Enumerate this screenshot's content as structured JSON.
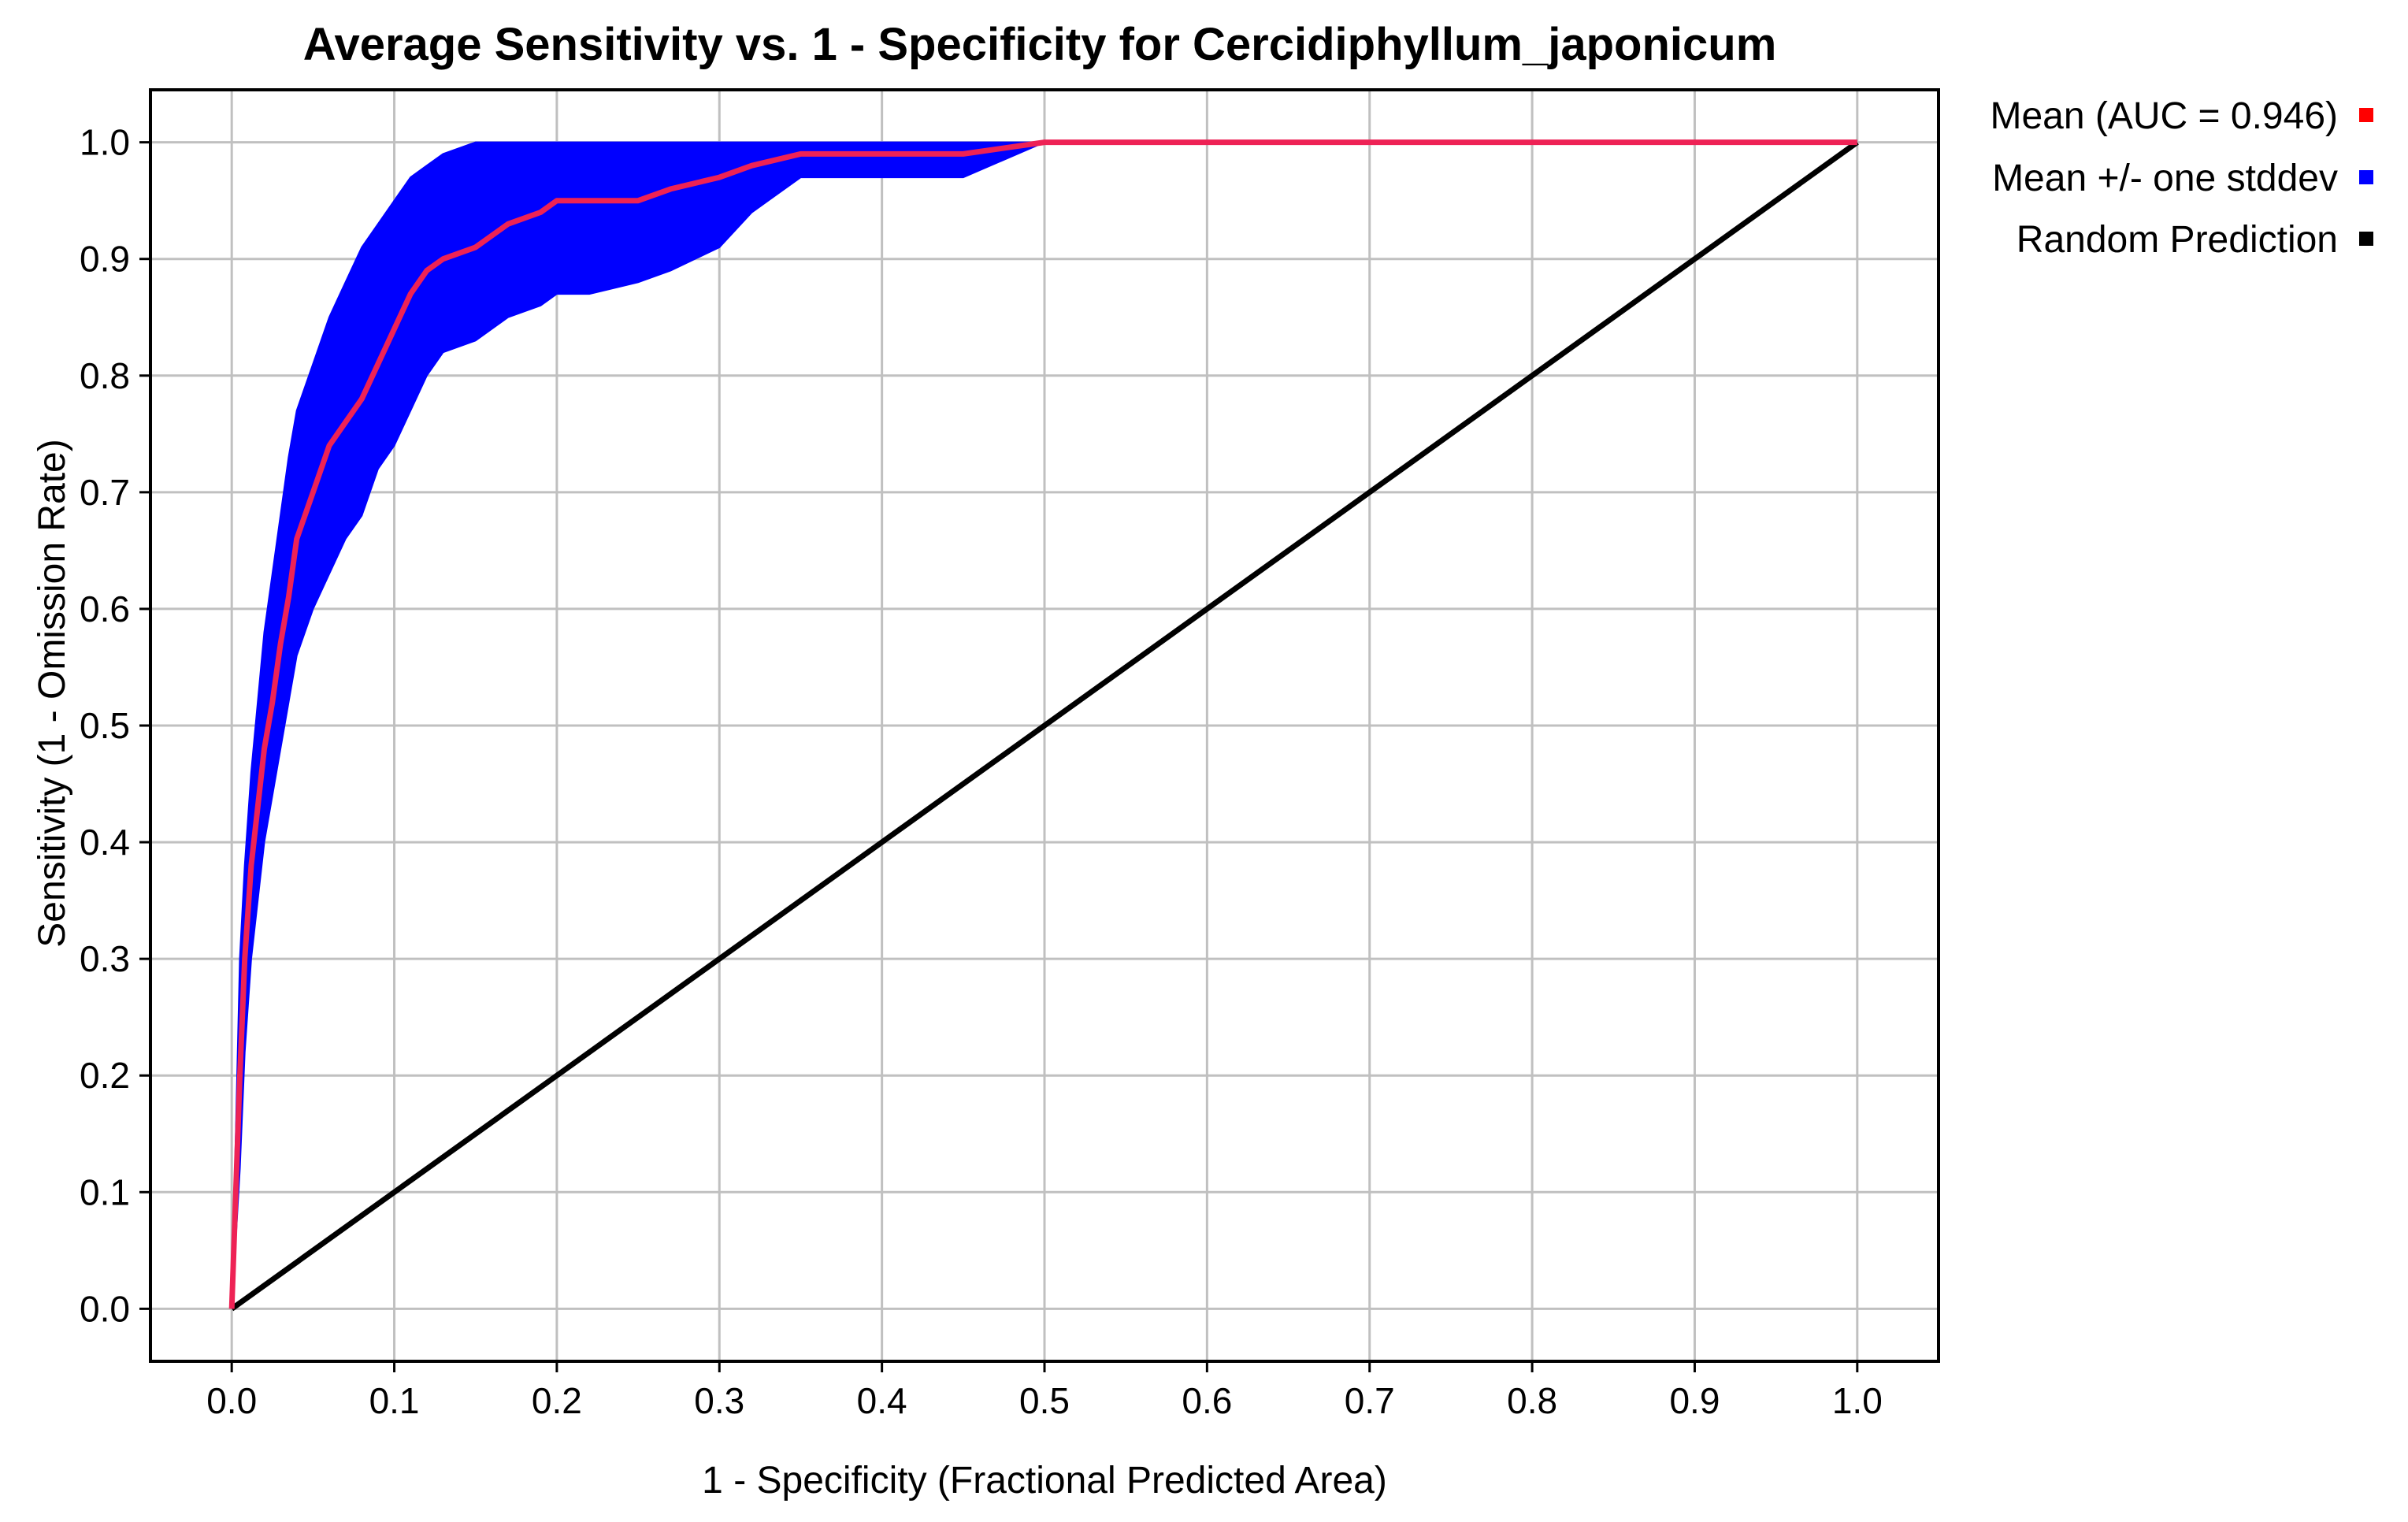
{
  "chart_data": {
    "type": "line",
    "title": "Average Sensitivity vs. 1 - Specificity for Cercidiphyllum_japonicum",
    "xlabel": "1 - Specificity (Fractional Predicted Area)",
    "ylabel": "Sensitivity (1 - Omission Rate)",
    "xlim": [
      -0.05,
      1.05
    ],
    "ylim": [
      -0.045,
      1.045
    ],
    "x_ticks": [
      "0.0",
      "0.1",
      "0.2",
      "0.3",
      "0.4",
      "0.5",
      "0.6",
      "0.7",
      "0.8",
      "0.9",
      "1.0"
    ],
    "y_ticks": [
      "0.0",
      "0.1",
      "0.2",
      "0.3",
      "0.4",
      "0.5",
      "0.6",
      "0.7",
      "0.8",
      "0.9",
      "1.0"
    ],
    "grid": true,
    "legend_position": "right",
    "legend": [
      {
        "label": "Mean (AUC = 0.946)",
        "color": "#ff0000"
      },
      {
        "label": "Mean +/- one stddev",
        "color": "#0000ff"
      },
      {
        "label": "Random Prediction",
        "color": "#000000"
      }
    ],
    "series": [
      {
        "name": "Mean (AUC = 0.946)",
        "color": "#ee2255",
        "x": [
          0.0,
          0.005,
          0.008,
          0.012,
          0.016,
          0.02,
          0.025,
          0.03,
          0.035,
          0.04,
          0.05,
          0.06,
          0.07,
          0.08,
          0.09,
          0.1,
          0.11,
          0.12,
          0.13,
          0.15,
          0.17,
          0.19,
          0.2,
          0.22,
          0.25,
          0.27,
          0.3,
          0.32,
          0.35,
          0.4,
          0.45,
          0.5,
          0.52,
          0.6,
          0.7,
          0.8,
          0.9,
          1.0
        ],
        "y": [
          0.0,
          0.2,
          0.3,
          0.38,
          0.43,
          0.48,
          0.52,
          0.57,
          0.61,
          0.66,
          0.7,
          0.74,
          0.76,
          0.78,
          0.81,
          0.84,
          0.87,
          0.89,
          0.9,
          0.91,
          0.93,
          0.94,
          0.95,
          0.95,
          0.95,
          0.96,
          0.97,
          0.98,
          0.99,
          0.99,
          0.99,
          1.0,
          1.0,
          1.0,
          1.0,
          1.0,
          1.0,
          1.0
        ]
      },
      {
        "name": "Mean +/- one stddev",
        "color": "#0000ff",
        "type": "band",
        "x": [
          0.0,
          0.005,
          0.008,
          0.012,
          0.016,
          0.02,
          0.025,
          0.03,
          0.035,
          0.04,
          0.05,
          0.06,
          0.07,
          0.08,
          0.09,
          0.1,
          0.11,
          0.12,
          0.13,
          0.15,
          0.17,
          0.19,
          0.2,
          0.22,
          0.25,
          0.27,
          0.3,
          0.32,
          0.35,
          0.4,
          0.45,
          0.5,
          0.52,
          0.6,
          0.7,
          0.8,
          0.9,
          1.0
        ],
        "upper": [
          0.0,
          0.3,
          0.38,
          0.46,
          0.52,
          0.58,
          0.63,
          0.68,
          0.73,
          0.77,
          0.81,
          0.85,
          0.88,
          0.91,
          0.93,
          0.95,
          0.97,
          0.98,
          0.99,
          1.0,
          1.0,
          1.0,
          1.0,
          1.0,
          1.0,
          1.0,
          1.0,
          1.0,
          1.0,
          1.0,
          1.0,
          1.0,
          1.0,
          1.0,
          1.0,
          1.0,
          1.0,
          1.0
        ],
        "lower": [
          0.0,
          0.12,
          0.22,
          0.3,
          0.35,
          0.4,
          0.44,
          0.48,
          0.52,
          0.56,
          0.6,
          0.63,
          0.66,
          0.68,
          0.72,
          0.74,
          0.77,
          0.8,
          0.82,
          0.83,
          0.85,
          0.86,
          0.87,
          0.87,
          0.88,
          0.89,
          0.91,
          0.94,
          0.97,
          0.97,
          0.97,
          1.0,
          1.0,
          1.0,
          1.0,
          1.0,
          1.0,
          1.0
        ]
      },
      {
        "name": "Random Prediction",
        "color": "#000000",
        "x": [
          0.0,
          1.0
        ],
        "y": [
          0.0,
          1.0
        ]
      }
    ]
  }
}
